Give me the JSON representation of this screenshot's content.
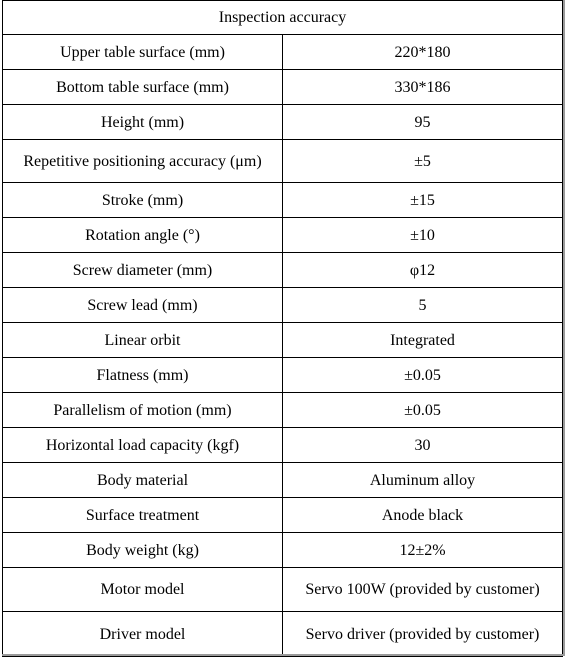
{
  "table": {
    "title": "Inspection accuracy",
    "rows": [
      {
        "param": "Upper table surface (mm)",
        "value": "220*180"
      },
      {
        "param": "Bottom table surface (mm)",
        "value": "330*186"
      },
      {
        "param": "Height (mm)",
        "value": "95"
      },
      {
        "param": "Repetitive positioning accuracy (μm)",
        "value": "±5"
      },
      {
        "param": "Stroke (mm)",
        "value": "±15"
      },
      {
        "param": "Rotation angle (°)",
        "value": "±10"
      },
      {
        "param": "Screw diameter (mm)",
        "value": "φ12"
      },
      {
        "param": "Screw lead (mm)",
        "value": "5"
      },
      {
        "param": "Linear orbit",
        "value": "Integrated"
      },
      {
        "param": "Flatness (mm)",
        "value": "±0.05"
      },
      {
        "param": "Parallelism of motion (mm)",
        "value": "±0.05"
      },
      {
        "param": "Horizontal load capacity (kgf)",
        "value": "30"
      },
      {
        "param": "Body material",
        "value": "Aluminum alloy"
      },
      {
        "param": "Surface treatment",
        "value": "Anode black"
      },
      {
        "param": "Body weight (kg)",
        "value": "12±2%"
      },
      {
        "param": "Motor model",
        "value": "Servo 100W (provided by customer)"
      },
      {
        "param": "Driver model",
        "value": "Servo driver (provided by customer)"
      }
    ]
  }
}
